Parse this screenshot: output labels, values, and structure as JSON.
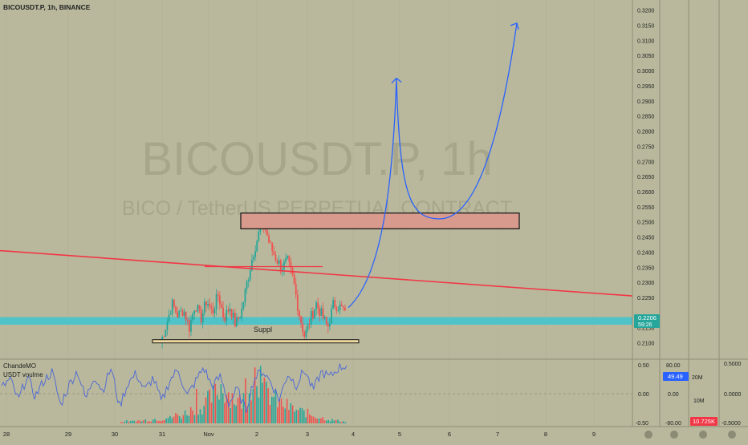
{
  "header": {
    "title": "BICOUSDT.P, 1h, BINANCE"
  },
  "watermark": {
    "symbol": "BICOUSDT.P, 1h",
    "description": "BICO / TetherUS PERPETUAL CONTRACT"
  },
  "colors": {
    "background": "#b9b89c",
    "bull": "#26a69a",
    "bear": "#ef5350",
    "trendline": "#f23645",
    "projection": "#2962ff",
    "support_band": "#4fc3c7",
    "resistance_box": "#d79a8c",
    "price_tag": "#26a69a",
    "oscillator_tag": "#2962ff",
    "volume_tag": "#f23645"
  },
  "price_axis": {
    "ticks": [
      "0.3200",
      "0.3150",
      "0.3100",
      "0.3050",
      "0.3000",
      "0.2950",
      "0.2900",
      "0.2850",
      "0.2800",
      "0.2750",
      "0.2700",
      "0.2650",
      "0.2600",
      "0.2550",
      "0.2500",
      "0.2450",
      "0.2400",
      "0.2350",
      "0.2300",
      "0.2250",
      "0.2150",
      "0.2100"
    ],
    "last_price": "0.2206",
    "countdown": "59:26"
  },
  "time_axis": {
    "labels": [
      "28",
      "29",
      "30",
      "31",
      "Nov",
      "2",
      "3",
      "4",
      "5",
      "6",
      "7",
      "8",
      "9"
    ]
  },
  "annotations": {
    "support_label": "Suppl"
  },
  "indicator_pane": {
    "label_1": "ChandeMO",
    "label_2": "USDT voulme",
    "axis_left": [
      "0.50",
      "0.00",
      "-0.50"
    ],
    "axis_mid": [
      "80.00",
      "0.00",
      "-80.00"
    ],
    "axis_vol": [
      "20M",
      "10M"
    ],
    "axis_right": [
      "0.5000",
      "0.0000",
      "-0.5000"
    ],
    "cmo_value": "49.49",
    "volume_value": "10.725K"
  },
  "chart_data": {
    "type": "candlestick",
    "title": "BICOUSDT.P, 1h, BINANCE",
    "xlabel": "",
    "ylabel": "",
    "x_ticks": [
      "28",
      "29",
      "30",
      "31",
      "Nov",
      "2",
      "3",
      "4",
      "5",
      "6",
      "7",
      "8",
      "9"
    ],
    "ylim": [
      0.2075,
      0.3215
    ],
    "last_price": 0.2206,
    "price_path": [
      0.21,
      0.216,
      0.223,
      0.219,
      0.221,
      0.215,
      0.223,
      0.218,
      0.224,
      0.22,
      0.226,
      0.218,
      0.222,
      0.216,
      0.22,
      0.23,
      0.239,
      0.246,
      0.249,
      0.242,
      0.238,
      0.235,
      0.237,
      0.231,
      0.22,
      0.212,
      0.218,
      0.223,
      0.219,
      0.215,
      0.223,
      0.222,
      0.2206
    ],
    "cmo_path": [
      0.1,
      0.25,
      -0.12,
      0.3,
      -0.05,
      0.22,
      0.38,
      -0.2,
      0.15,
      0.4,
      -0.1,
      0.32,
      0.05,
      0.45,
      -0.22,
      0.18,
      0.35,
      0.05,
      0.28,
      -0.15,
      0.24,
      0.42,
      -0.05,
      0.2,
      0.46,
      0.12,
      0.3,
      -0.18,
      0.08,
      -0.3,
      0.26,
      0.4,
      0.2,
      -0.1,
      0.35,
      0.15,
      0.42,
      0.05,
      0.38,
      0.28,
      0.45,
      0.49
    ],
    "volume_profile": [
      0.02,
      0.04,
      0.03,
      0.05,
      0.04,
      0.06,
      0.05,
      0.08,
      0.06,
      0.1,
      0.09,
      0.14,
      0.12,
      0.18,
      0.22,
      0.28,
      0.25,
      0.35,
      0.42,
      0.5,
      0.62,
      0.55,
      0.48,
      0.4,
      0.36,
      0.45,
      0.7,
      0.88,
      0.6,
      0.52,
      0.47,
      0.38,
      0.33,
      0.3,
      0.26,
      0.22,
      0.2,
      0.18,
      0.15,
      0.12,
      0.1,
      0.08,
      0.06,
      0.05,
      0.04,
      0.03
    ],
    "levels": {
      "resistance_zone": [
        0.2477,
        0.2529
      ],
      "support_band": [
        0.216,
        0.2185
      ],
      "support_base": 0.2105,
      "neckline": 0.2352,
      "trendline": {
        "from": {
          "x_tick": "28",
          "price": 0.2405
        },
        "to": {
          "x_tick": "9",
          "price": 0.2255
        }
      }
    },
    "projection": {
      "first_target": 0.2975,
      "pullback": 0.251,
      "final_target": 0.3157
    }
  }
}
